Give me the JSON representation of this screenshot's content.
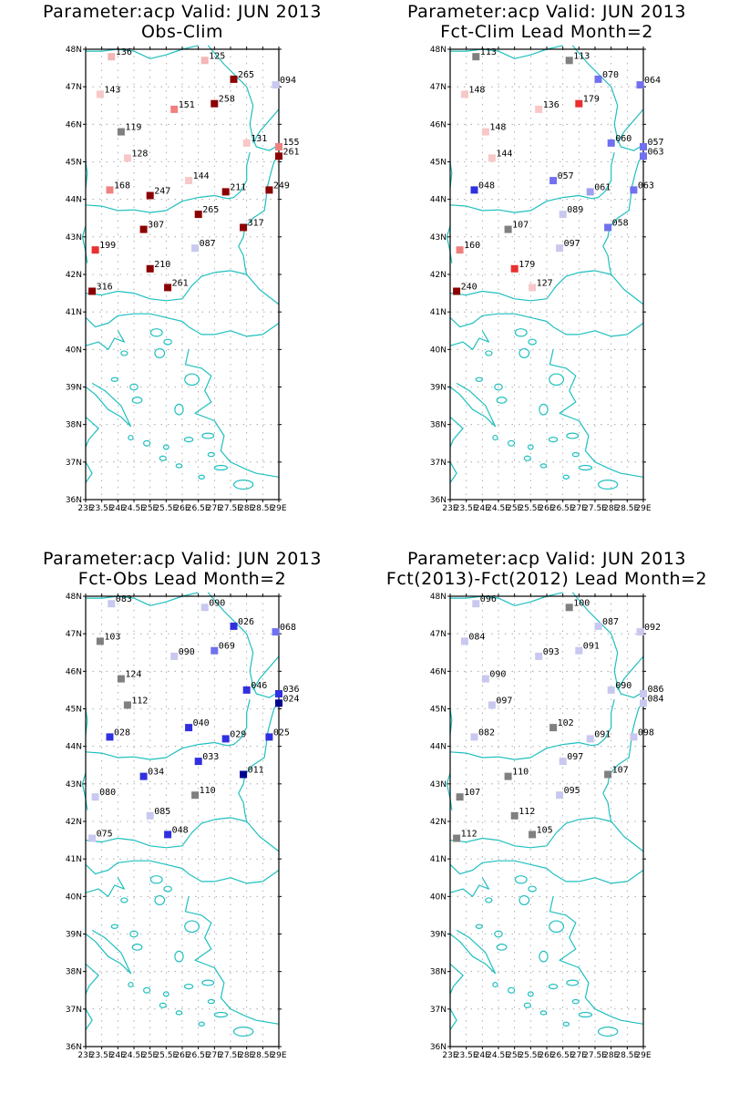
{
  "palette": {
    "coast": "#1fbfbf",
    "grid": "#9a9a9a",
    "frame": "#000000"
  },
  "axes": {
    "lat_labels": [
      "36N",
      "37N",
      "38N",
      "39N",
      "40N",
      "41N",
      "42N",
      "43N",
      "44N",
      "45N",
      "46N",
      "47N",
      "48N"
    ],
    "lon_labels": [
      "23E",
      "23.5E",
      "24E",
      "24.5E",
      "25E",
      "25.5E",
      "26E",
      "26.5E",
      "27E",
      "27.5E",
      "28E",
      "28.5E",
      "29E"
    ],
    "lat_values": [
      36,
      37,
      38,
      39,
      40,
      41,
      42,
      43,
      44,
      45,
      46,
      47,
      48
    ],
    "lon_values": [
      23,
      23.5,
      24,
      24.5,
      25,
      25.5,
      26,
      26.5,
      27,
      27.5,
      28,
      28.5,
      29
    ]
  },
  "panels": [
    {
      "title1": "Parameter:acp Valid: JUN 2013",
      "title2": "Obs-Clim",
      "stations": [
        {
          "lon": 23.8,
          "lat": 47.8,
          "label": "136",
          "color": "#f4b6b6"
        },
        {
          "lon": 26.7,
          "lat": 47.7,
          "label": "125",
          "color": "#f4b6b6"
        },
        {
          "lon": 27.6,
          "lat": 47.2,
          "label": "265",
          "color": "#8b0000"
        },
        {
          "lon": 28.9,
          "lat": 47.05,
          "label": "094",
          "color": "#c8c8f0"
        },
        {
          "lon": 23.45,
          "lat": 46.8,
          "label": "143",
          "color": "#f8c8c8"
        },
        {
          "lon": 25.75,
          "lat": 46.4,
          "label": "151",
          "color": "#f08080"
        },
        {
          "lon": 27.0,
          "lat": 46.55,
          "label": "258",
          "color": "#8b0000"
        },
        {
          "lon": 24.1,
          "lat": 45.8,
          "label": "119",
          "color": "#808080"
        },
        {
          "lon": 28.0,
          "lat": 45.5,
          "label": "131",
          "color": "#f8c8c8"
        },
        {
          "lon": 29.0,
          "lat": 45.4,
          "label": "155",
          "color": "#f08080"
        },
        {
          "lon": 29.0,
          "lat": 45.15,
          "label": "261",
          "color": "#8b0000"
        },
        {
          "lon": 24.3,
          "lat": 45.1,
          "label": "128",
          "color": "#f8c8c8"
        },
        {
          "lon": 26.2,
          "lat": 44.5,
          "label": "144",
          "color": "#f8c8c8"
        },
        {
          "lon": 23.75,
          "lat": 44.25,
          "label": "168",
          "color": "#f08080"
        },
        {
          "lon": 25.0,
          "lat": 44.1,
          "label": "247",
          "color": "#8b0000"
        },
        {
          "lon": 27.35,
          "lat": 44.2,
          "label": "211",
          "color": "#8b0000"
        },
        {
          "lon": 28.7,
          "lat": 44.25,
          "label": "249",
          "color": "#8b0000"
        },
        {
          "lon": 26.5,
          "lat": 43.6,
          "label": "265",
          "color": "#8b0000"
        },
        {
          "lon": 24.8,
          "lat": 43.2,
          "label": "307",
          "color": "#8b0000"
        },
        {
          "lon": 27.9,
          "lat": 43.25,
          "label": "317",
          "color": "#8b0000"
        },
        {
          "lon": 23.3,
          "lat": 42.65,
          "label": "199",
          "color": "#e83030"
        },
        {
          "lon": 26.4,
          "lat": 42.7,
          "label": "087",
          "color": "#c8c8f0"
        },
        {
          "lon": 25.0,
          "lat": 42.15,
          "label": "210",
          "color": "#8b0000"
        },
        {
          "lon": 25.55,
          "lat": 41.65,
          "label": "261",
          "color": "#8b0000"
        },
        {
          "lon": 23.2,
          "lat": 41.55,
          "label": "316",
          "color": "#8b0000"
        }
      ]
    },
    {
      "title1": "Parameter:acp Valid: JUN 2013",
      "title2": "Fct-Clim Lead Month=2",
      "stations": [
        {
          "lon": 23.8,
          "lat": 47.8,
          "label": "113",
          "color": "#808080"
        },
        {
          "lon": 26.7,
          "lat": 47.7,
          "label": "113",
          "color": "#808080"
        },
        {
          "lon": 27.6,
          "lat": 47.2,
          "label": "070",
          "color": "#7070f0"
        },
        {
          "lon": 28.9,
          "lat": 47.05,
          "label": "064",
          "color": "#7070f0"
        },
        {
          "lon": 23.45,
          "lat": 46.8,
          "label": "148",
          "color": "#f8c8c8"
        },
        {
          "lon": 25.75,
          "lat": 46.4,
          "label": "136",
          "color": "#f8c8c8"
        },
        {
          "lon": 27.0,
          "lat": 46.55,
          "label": "179",
          "color": "#e83030"
        },
        {
          "lon": 24.1,
          "lat": 45.8,
          "label": "148",
          "color": "#f8c8c8"
        },
        {
          "lon": 28.0,
          "lat": 45.5,
          "label": "060",
          "color": "#7070f0"
        },
        {
          "lon": 29.0,
          "lat": 45.4,
          "label": "057",
          "color": "#7070f0"
        },
        {
          "lon": 29.0,
          "lat": 45.15,
          "label": "063",
          "color": "#7070f0"
        },
        {
          "lon": 24.3,
          "lat": 45.1,
          "label": "144",
          "color": "#f8c8c8"
        },
        {
          "lon": 26.2,
          "lat": 44.5,
          "label": "057",
          "color": "#7070f0"
        },
        {
          "lon": 23.75,
          "lat": 44.25,
          "label": "048",
          "color": "#3030e0"
        },
        {
          "lon": 27.35,
          "lat": 44.2,
          "label": "061",
          "color": "#a0a0f0"
        },
        {
          "lon": 28.7,
          "lat": 44.25,
          "label": "063",
          "color": "#7070f0"
        },
        {
          "lon": 26.5,
          "lat": 43.6,
          "label": "089",
          "color": "#c8c8f0"
        },
        {
          "lon": 24.8,
          "lat": 43.2,
          "label": "107",
          "color": "#808080"
        },
        {
          "lon": 27.9,
          "lat": 43.25,
          "label": "058",
          "color": "#7070f0"
        },
        {
          "lon": 23.3,
          "lat": 42.65,
          "label": "160",
          "color": "#f08080"
        },
        {
          "lon": 26.4,
          "lat": 42.7,
          "label": "097",
          "color": "#c8c8f0"
        },
        {
          "lon": 25.0,
          "lat": 42.15,
          "label": "179",
          "color": "#e83030"
        },
        {
          "lon": 25.55,
          "lat": 41.65,
          "label": "127",
          "color": "#f8c8c8"
        },
        {
          "lon": 23.2,
          "lat": 41.55,
          "label": "240",
          "color": "#8b0000"
        }
      ]
    },
    {
      "title1": "Parameter:acp Valid: JUN 2013",
      "title2": "Fct-Obs Lead Month=2",
      "stations": [
        {
          "lon": 23.8,
          "lat": 47.8,
          "label": "083",
          "color": "#c8c8f0"
        },
        {
          "lon": 26.7,
          "lat": 47.7,
          "label": "090",
          "color": "#c8c8f0"
        },
        {
          "lon": 27.6,
          "lat": 47.2,
          "label": "026",
          "color": "#3030e0"
        },
        {
          "lon": 28.9,
          "lat": 47.05,
          "label": "068",
          "color": "#7070f0"
        },
        {
          "lon": 23.45,
          "lat": 46.8,
          "label": "103",
          "color": "#808080"
        },
        {
          "lon": 25.75,
          "lat": 46.4,
          "label": "090",
          "color": "#c8c8f0"
        },
        {
          "lon": 27.0,
          "lat": 46.55,
          "label": "069",
          "color": "#7070f0"
        },
        {
          "lon": 24.1,
          "lat": 45.8,
          "label": "124",
          "color": "#808080"
        },
        {
          "lon": 28.0,
          "lat": 45.5,
          "label": "046",
          "color": "#3030e0"
        },
        {
          "lon": 29.0,
          "lat": 45.4,
          "label": "036",
          "color": "#3030e0"
        },
        {
          "lon": 29.0,
          "lat": 45.15,
          "label": "024",
          "color": "#000090"
        },
        {
          "lon": 24.3,
          "lat": 45.1,
          "label": "112",
          "color": "#808080"
        },
        {
          "lon": 26.2,
          "lat": 44.5,
          "label": "040",
          "color": "#3030e0"
        },
        {
          "lon": 23.75,
          "lat": 44.25,
          "label": "028",
          "color": "#3030e0"
        },
        {
          "lon": 27.35,
          "lat": 44.2,
          "label": "029",
          "color": "#3030e0"
        },
        {
          "lon": 28.7,
          "lat": 44.25,
          "label": "025",
          "color": "#3030e0"
        },
        {
          "lon": 26.5,
          "lat": 43.6,
          "label": "033",
          "color": "#3030e0"
        },
        {
          "lon": 24.8,
          "lat": 43.2,
          "label": "034",
          "color": "#3030e0"
        },
        {
          "lon": 27.9,
          "lat": 43.25,
          "label": "011",
          "color": "#000090"
        },
        {
          "lon": 23.3,
          "lat": 42.65,
          "label": "080",
          "color": "#c8c8f0"
        },
        {
          "lon": 26.4,
          "lat": 42.7,
          "label": "110",
          "color": "#808080"
        },
        {
          "lon": 25.0,
          "lat": 42.15,
          "label": "085",
          "color": "#c8c8f0"
        },
        {
          "lon": 25.55,
          "lat": 41.65,
          "label": "048",
          "color": "#3030e0"
        },
        {
          "lon": 23.2,
          "lat": 41.55,
          "label": "075",
          "color": "#c8c8f0"
        }
      ]
    },
    {
      "title1": "Parameter:acp Valid: JUN 2013",
      "title2": "Fct(2013)-Fct(2012) Lead Month=2",
      "stations": [
        {
          "lon": 23.8,
          "lat": 47.8,
          "label": "096",
          "color": "#c8c8f0"
        },
        {
          "lon": 26.7,
          "lat": 47.7,
          "label": "100",
          "color": "#808080"
        },
        {
          "lon": 27.6,
          "lat": 47.2,
          "label": "087",
          "color": "#c8c8f0"
        },
        {
          "lon": 28.9,
          "lat": 47.05,
          "label": "092",
          "color": "#c8c8f0"
        },
        {
          "lon": 23.45,
          "lat": 46.8,
          "label": "084",
          "color": "#c8c8f0"
        },
        {
          "lon": 25.75,
          "lat": 46.4,
          "label": "093",
          "color": "#c8c8f0"
        },
        {
          "lon": 27.0,
          "lat": 46.55,
          "label": "091",
          "color": "#c8c8f0"
        },
        {
          "lon": 24.1,
          "lat": 45.8,
          "label": "090",
          "color": "#c8c8f0"
        },
        {
          "lon": 28.0,
          "lat": 45.5,
          "label": "090",
          "color": "#c8c8f0"
        },
        {
          "lon": 29.0,
          "lat": 45.4,
          "label": "086",
          "color": "#c8c8f0"
        },
        {
          "lon": 29.0,
          "lat": 45.15,
          "label": "084",
          "color": "#c8c8f0"
        },
        {
          "lon": 24.3,
          "lat": 45.1,
          "label": "097",
          "color": "#c8c8f0"
        },
        {
          "lon": 26.2,
          "lat": 44.5,
          "label": "102",
          "color": "#808080"
        },
        {
          "lon": 23.75,
          "lat": 44.25,
          "label": "082",
          "color": "#c8c8f0"
        },
        {
          "lon": 27.35,
          "lat": 44.2,
          "label": "091",
          "color": "#c8c8f0"
        },
        {
          "lon": 28.7,
          "lat": 44.25,
          "label": "098",
          "color": "#c8c8f0"
        },
        {
          "lon": 26.5,
          "lat": 43.6,
          "label": "097",
          "color": "#c8c8f0"
        },
        {
          "lon": 24.8,
          "lat": 43.2,
          "label": "110",
          "color": "#808080"
        },
        {
          "lon": 27.9,
          "lat": 43.25,
          "label": "107",
          "color": "#808080"
        },
        {
          "lon": 23.3,
          "lat": 42.65,
          "label": "107",
          "color": "#808080"
        },
        {
          "lon": 26.4,
          "lat": 42.7,
          "label": "095",
          "color": "#c8c8f0"
        },
        {
          "lon": 25.0,
          "lat": 42.15,
          "label": "112",
          "color": "#808080"
        },
        {
          "lon": 25.55,
          "lat": 41.65,
          "label": "105",
          "color": "#808080"
        },
        {
          "lon": 23.2,
          "lat": 41.55,
          "label": "112",
          "color": "#808080"
        }
      ]
    }
  ]
}
